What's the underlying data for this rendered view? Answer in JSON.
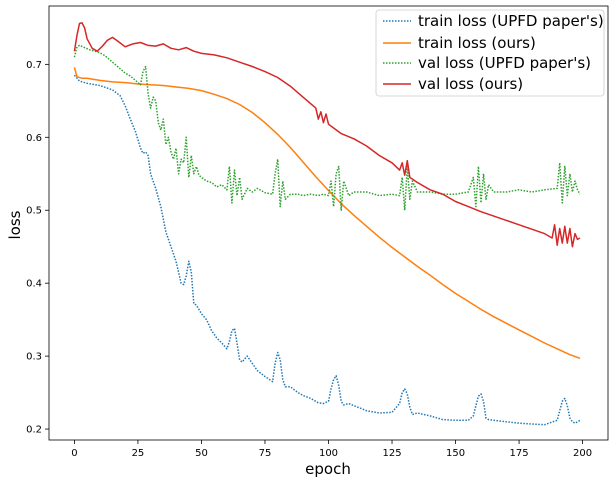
{
  "chart_data": {
    "type": "line",
    "title": "",
    "xlabel": "epoch",
    "ylabel": "loss",
    "xlim": [
      -10,
      210
    ],
    "ylim": [
      0.185,
      0.78
    ],
    "xticks": [
      0,
      25,
      50,
      75,
      100,
      125,
      150,
      175,
      200
    ],
    "yticks": [
      0.2,
      0.3,
      0.4,
      0.5,
      0.6,
      0.7
    ],
    "grid": false,
    "legend_position": "top-right",
    "series": [
      {
        "name": "train loss (UPFD paper's)",
        "color": "#1f77b4",
        "style": "dotted",
        "x": [
          0,
          2,
          5,
          10,
          15,
          18,
          20,
          22,
          24,
          26,
          27,
          28,
          29,
          30,
          32,
          34,
          36,
          38,
          40,
          42,
          43,
          44,
          45,
          46,
          47,
          48,
          50,
          52,
          54,
          56,
          58,
          60,
          61,
          62,
          63,
          64,
          65,
          66,
          68,
          70,
          72,
          75,
          78,
          79,
          80,
          81,
          82,
          83,
          85,
          88,
          90,
          93,
          96,
          98,
          100,
          101,
          102,
          103,
          104,
          105,
          106,
          108,
          110,
          113,
          115,
          120,
          125,
          128,
          129,
          130,
          131,
          132,
          133,
          135,
          140,
          145,
          150,
          155,
          157,
          158,
          159,
          160,
          161,
          162,
          163,
          165,
          170,
          175,
          180,
          185,
          190,
          191,
          192,
          193,
          194,
          195,
          196,
          197,
          198,
          199
        ],
        "values": [
          0.685,
          0.677,
          0.674,
          0.671,
          0.665,
          0.657,
          0.643,
          0.625,
          0.608,
          0.585,
          0.578,
          0.58,
          0.575,
          0.55,
          0.53,
          0.505,
          0.47,
          0.45,
          0.43,
          0.4,
          0.398,
          0.41,
          0.43,
          0.415,
          0.372,
          0.37,
          0.358,
          0.35,
          0.335,
          0.325,
          0.318,
          0.31,
          0.32,
          0.335,
          0.338,
          0.318,
          0.295,
          0.292,
          0.3,
          0.29,
          0.28,
          0.272,
          0.265,
          0.29,
          0.305,
          0.295,
          0.268,
          0.258,
          0.258,
          0.25,
          0.246,
          0.242,
          0.236,
          0.235,
          0.238,
          0.255,
          0.268,
          0.273,
          0.26,
          0.238,
          0.233,
          0.235,
          0.232,
          0.228,
          0.225,
          0.222,
          0.223,
          0.235,
          0.25,
          0.255,
          0.248,
          0.23,
          0.22,
          0.222,
          0.218,
          0.213,
          0.212,
          0.212,
          0.218,
          0.232,
          0.245,
          0.248,
          0.238,
          0.215,
          0.213,
          0.212,
          0.21,
          0.208,
          0.207,
          0.206,
          0.212,
          0.225,
          0.238,
          0.242,
          0.232,
          0.215,
          0.21,
          0.208,
          0.21,
          0.212
        ]
      },
      {
        "name": "train loss (ours)",
        "color": "#ff7f0e",
        "style": "solid",
        "x": [
          0,
          1,
          3,
          5,
          10,
          15,
          20,
          25,
          30,
          35,
          40,
          45,
          50,
          55,
          60,
          65,
          70,
          75,
          80,
          85,
          90,
          95,
          100,
          105,
          110,
          115,
          120,
          125,
          130,
          135,
          140,
          145,
          150,
          155,
          160,
          165,
          170,
          175,
          180,
          185,
          190,
          195,
          199
        ],
        "values": [
          0.696,
          0.683,
          0.681,
          0.681,
          0.678,
          0.676,
          0.675,
          0.673,
          0.672,
          0.671,
          0.669,
          0.667,
          0.664,
          0.659,
          0.653,
          0.645,
          0.634,
          0.62,
          0.604,
          0.586,
          0.566,
          0.546,
          0.527,
          0.509,
          0.493,
          0.478,
          0.463,
          0.449,
          0.436,
          0.423,
          0.411,
          0.398,
          0.386,
          0.375,
          0.364,
          0.354,
          0.345,
          0.336,
          0.327,
          0.318,
          0.31,
          0.302,
          0.297
        ]
      },
      {
        "name": "val loss (UPFD paper's)",
        "color": "#2ca02c",
        "style": "dotted",
        "x": [
          0,
          1,
          2,
          4,
          6,
          8,
          10,
          12,
          14,
          16,
          18,
          20,
          22,
          24,
          26,
          27,
          28,
          29,
          30,
          31,
          32,
          33,
          34,
          35,
          36,
          37,
          38,
          39,
          40,
          41,
          42,
          43,
          44,
          45,
          46,
          47,
          48,
          49,
          50,
          52,
          54,
          56,
          58,
          60,
          61,
          62,
          63,
          64,
          65,
          66,
          68,
          70,
          72,
          75,
          78,
          79,
          80,
          81,
          82,
          83,
          85,
          88,
          90,
          93,
          96,
          98,
          100,
          101,
          102,
          103,
          104,
          105,
          106,
          108,
          110,
          115,
          120,
          125,
          128,
          129,
          130,
          131,
          132,
          133,
          135,
          140,
          145,
          150,
          155,
          157,
          158,
          159,
          160,
          161,
          162,
          163,
          165,
          170,
          175,
          180,
          185,
          190,
          191,
          192,
          193,
          194,
          195,
          196,
          197,
          198,
          199
        ],
        "values": [
          0.71,
          0.724,
          0.726,
          0.723,
          0.72,
          0.718,
          0.716,
          0.712,
          0.706,
          0.7,
          0.694,
          0.688,
          0.684,
          0.678,
          0.672,
          0.69,
          0.697,
          0.66,
          0.64,
          0.655,
          0.65,
          0.62,
          0.61,
          0.625,
          0.59,
          0.6,
          0.58,
          0.57,
          0.585,
          0.55,
          0.57,
          0.565,
          0.6,
          0.545,
          0.575,
          0.55,
          0.56,
          0.548,
          0.545,
          0.54,
          0.538,
          0.532,
          0.535,
          0.528,
          0.56,
          0.51,
          0.555,
          0.52,
          0.545,
          0.515,
          0.53,
          0.525,
          0.53,
          0.524,
          0.522,
          0.55,
          0.57,
          0.505,
          0.54,
          0.515,
          0.522,
          0.522,
          0.52,
          0.522,
          0.52,
          0.522,
          0.52,
          0.54,
          0.505,
          0.55,
          0.56,
          0.5,
          0.54,
          0.52,
          0.525,
          0.525,
          0.52,
          0.522,
          0.52,
          0.545,
          0.5,
          0.56,
          0.515,
          0.54,
          0.525,
          0.525,
          0.522,
          0.522,
          0.525,
          0.545,
          0.505,
          0.56,
          0.51,
          0.55,
          0.515,
          0.535,
          0.525,
          0.525,
          0.528,
          0.525,
          0.528,
          0.53,
          0.565,
          0.51,
          0.56,
          0.52,
          0.55,
          0.525,
          0.54,
          0.528,
          0.522
        ]
      },
      {
        "name": "val loss (ours)",
        "color": "#d62728",
        "style": "solid",
        "x": [
          0,
          1,
          2,
          3,
          4,
          5,
          7,
          9,
          11,
          13,
          15,
          17,
          20,
          23,
          26,
          29,
          32,
          35,
          38,
          41,
          44,
          47,
          50,
          55,
          60,
          65,
          70,
          75,
          80,
          85,
          90,
          95,
          96,
          97,
          98,
          99,
          100,
          105,
          110,
          115,
          120,
          125,
          128,
          129,
          130,
          131,
          132,
          135,
          140,
          145,
          150,
          155,
          160,
          165,
          170,
          175,
          180,
          185,
          188,
          189,
          190,
          191,
          192,
          193,
          194,
          195,
          196,
          197,
          198,
          199
        ],
        "values": [
          0.718,
          0.74,
          0.756,
          0.757,
          0.75,
          0.735,
          0.722,
          0.718,
          0.725,
          0.733,
          0.737,
          0.732,
          0.724,
          0.728,
          0.73,
          0.726,
          0.725,
          0.728,
          0.722,
          0.72,
          0.723,
          0.718,
          0.715,
          0.713,
          0.709,
          0.703,
          0.697,
          0.69,
          0.682,
          0.67,
          0.655,
          0.64,
          0.625,
          0.635,
          0.62,
          0.632,
          0.618,
          0.605,
          0.598,
          0.588,
          0.575,
          0.565,
          0.555,
          0.565,
          0.548,
          0.568,
          0.545,
          0.538,
          0.528,
          0.522,
          0.512,
          0.505,
          0.498,
          0.492,
          0.486,
          0.48,
          0.474,
          0.468,
          0.462,
          0.48,
          0.452,
          0.475,
          0.455,
          0.478,
          0.455,
          0.475,
          0.45,
          0.468,
          0.46,
          0.462
        ]
      }
    ]
  }
}
